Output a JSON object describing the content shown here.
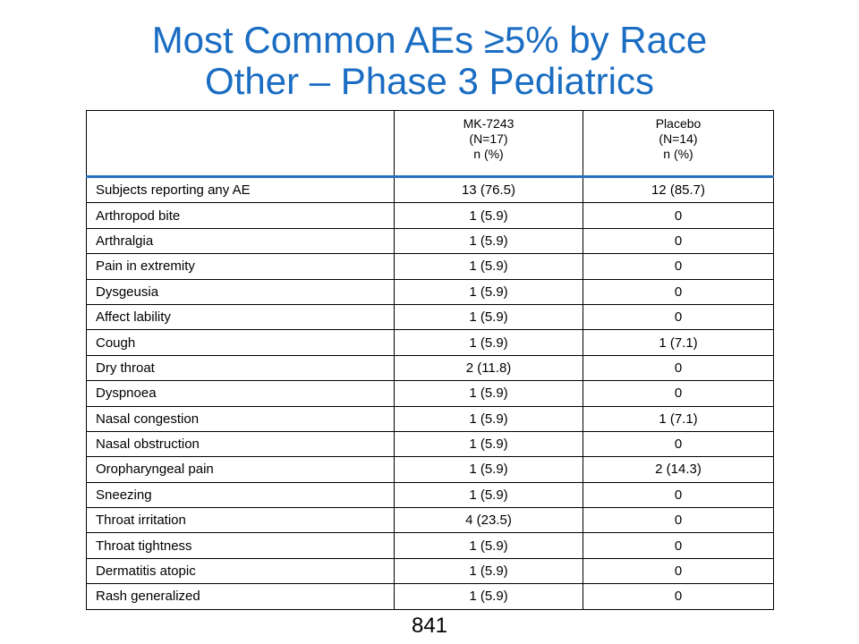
{
  "slide": {
    "title_line1": "Most Common AEs ≥5% by Race",
    "title_line2": "Other – Phase 3 Pediatrics",
    "page_number": "841"
  },
  "table": {
    "columns": [
      {
        "line1": "",
        "line2": "",
        "line3": ""
      },
      {
        "line1": "MK-7243",
        "line2": "(N=17)",
        "line3": "n (%)"
      },
      {
        "line1": "Placebo",
        "line2": "(N=14)",
        "line3": "n (%)"
      }
    ],
    "rows": [
      {
        "term": "Subjects reporting any AE",
        "mk7243": "13 (76.5)",
        "placebo": "12 (85.7)"
      },
      {
        "term": "Arthropod bite",
        "mk7243": "1 (5.9)",
        "placebo": "0"
      },
      {
        "term": "Arthralgia",
        "mk7243": "1 (5.9)",
        "placebo": "0"
      },
      {
        "term": "Pain in extremity",
        "mk7243": "1 (5.9)",
        "placebo": "0"
      },
      {
        "term": "Dysgeusia",
        "mk7243": "1 (5.9)",
        "placebo": "0"
      },
      {
        "term": "Affect lability",
        "mk7243": "1 (5.9)",
        "placebo": "0"
      },
      {
        "term": "Cough",
        "mk7243": "1 (5.9)",
        "placebo": "1 (7.1)"
      },
      {
        "term": "Dry throat",
        "mk7243": "2 (11.8)",
        "placebo": "0"
      },
      {
        "term": "Dyspnoea",
        "mk7243": "1 (5.9)",
        "placebo": "0"
      },
      {
        "term": "Nasal congestion",
        "mk7243": "1 (5.9)",
        "placebo": "1 (7.1)"
      },
      {
        "term": "Nasal obstruction",
        "mk7243": "1 (5.9)",
        "placebo": "0"
      },
      {
        "term": "Oropharyngeal pain",
        "mk7243": "1 (5.9)",
        "placebo": "2 (14.3)"
      },
      {
        "term": "Sneezing",
        "mk7243": "1 (5.9)",
        "placebo": "0"
      },
      {
        "term": "Throat irritation",
        "mk7243": "4 (23.5)",
        "placebo": "0"
      },
      {
        "term": "Throat tightness",
        "mk7243": "1 (5.9)",
        "placebo": "0"
      },
      {
        "term": "Dermatitis atopic",
        "mk7243": "1 (5.9)",
        "placebo": "0"
      },
      {
        "term": "Rash generalized",
        "mk7243": "1 (5.9)",
        "placebo": "0"
      }
    ]
  },
  "colors": {
    "title": "#1a6dc2",
    "header_rule": "#2a6fbd"
  }
}
